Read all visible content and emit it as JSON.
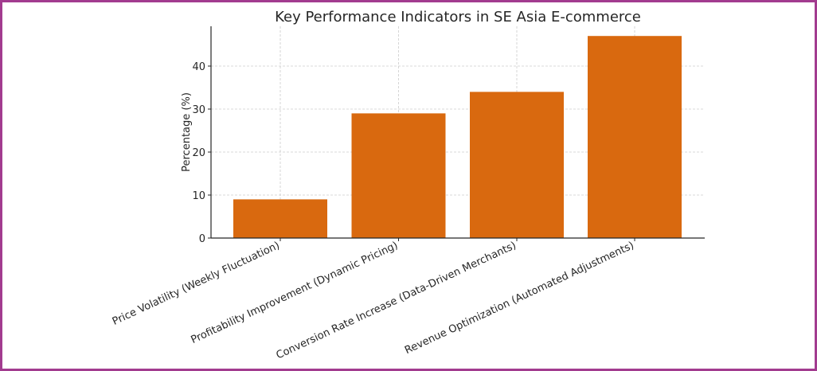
{
  "chart_data": {
    "type": "bar",
    "title": "Key Performance Indicators in SE Asia E-commerce",
    "xlabel": "",
    "ylabel": "Percentage (%)",
    "categories": [
      "Price Volatility (Weekly Fluctuation)",
      "Profitability Improvement (Dynamic Pricing)",
      "Conversion Rate Increase (Data-Driven Merchants)",
      "Revenue Optimization (Automated Adjustments)"
    ],
    "values": [
      9,
      29,
      34,
      47
    ],
    "ylim": [
      0,
      49
    ],
    "yticks": [
      0,
      10,
      20,
      30,
      40
    ],
    "grid": true,
    "bar_color": "#d9690f",
    "frame_color": "#a23b8f"
  }
}
